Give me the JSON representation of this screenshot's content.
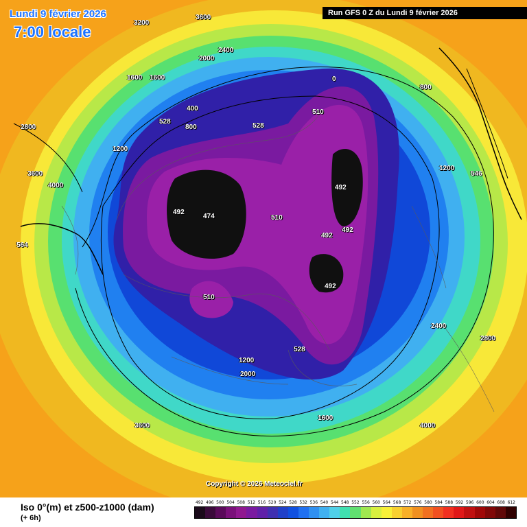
{
  "header": {
    "date": "Lundi 9 février 2026",
    "time": "7:00 locale",
    "run": "Run GFS 0 Z du Lundi 9 février 2026"
  },
  "copyright": "Copyright © 2026 Meteociel.fr",
  "legend": {
    "title": "Iso 0°(m) et z500-z1000 (dam)",
    "subtitle": "(+ 6h)",
    "ticks": [
      "492",
      "496",
      "500",
      "504",
      "508",
      "512",
      "516",
      "520",
      "524",
      "528",
      "532",
      "536",
      "540",
      "544",
      "548",
      "552",
      "556",
      "560",
      "564",
      "568",
      "572",
      "576",
      "580",
      "584",
      "588",
      "592",
      "596",
      "600",
      "604",
      "608",
      "612"
    ],
    "colors": [
      "#1a0a1a",
      "#3a0a3a",
      "#5a0a5a",
      "#7a107a",
      "#901890",
      "#7a1aa0",
      "#6020a8",
      "#4030b0",
      "#2040c8",
      "#1050e0",
      "#2070f0",
      "#3090f0",
      "#40b0f0",
      "#50d0e8",
      "#40e0b0",
      "#60e070",
      "#a0e850",
      "#d8f040",
      "#f8f038",
      "#f8d030",
      "#f8b028",
      "#f09020",
      "#f07020",
      "#f05020",
      "#f03020",
      "#e01818",
      "#c01010",
      "#a00808",
      "#800808",
      "#600808",
      "#300000"
    ]
  },
  "labels": [
    {
      "text": "3600"
    },
    {
      "text": "3200"
    },
    {
      "text": "3600"
    },
    {
      "text": "4000"
    },
    {
      "text": "2800"
    },
    {
      "text": "2400"
    },
    {
      "text": "2000"
    },
    {
      "text": "1600"
    },
    {
      "text": "1600"
    },
    {
      "text": "1200"
    },
    {
      "text": "400"
    },
    {
      "text": "0"
    },
    {
      "text": "510"
    },
    {
      "text": "492"
    },
    {
      "text": "474"
    },
    {
      "text": "492"
    },
    {
      "text": "492"
    },
    {
      "text": "492"
    },
    {
      "text": "492"
    },
    {
      "text": "510"
    },
    {
      "text": "510"
    },
    {
      "text": "528"
    },
    {
      "text": "528"
    },
    {
      "text": "528"
    },
    {
      "text": "800"
    },
    {
      "text": "800"
    },
    {
      "text": "1200"
    },
    {
      "text": "2000"
    },
    {
      "text": "2400"
    },
    {
      "text": "2800"
    },
    {
      "text": "4000"
    },
    {
      "text": "3600"
    },
    {
      "text": "564"
    },
    {
      "text": "546"
    },
    {
      "text": "1200"
    },
    {
      "text": "1600"
    }
  ]
}
